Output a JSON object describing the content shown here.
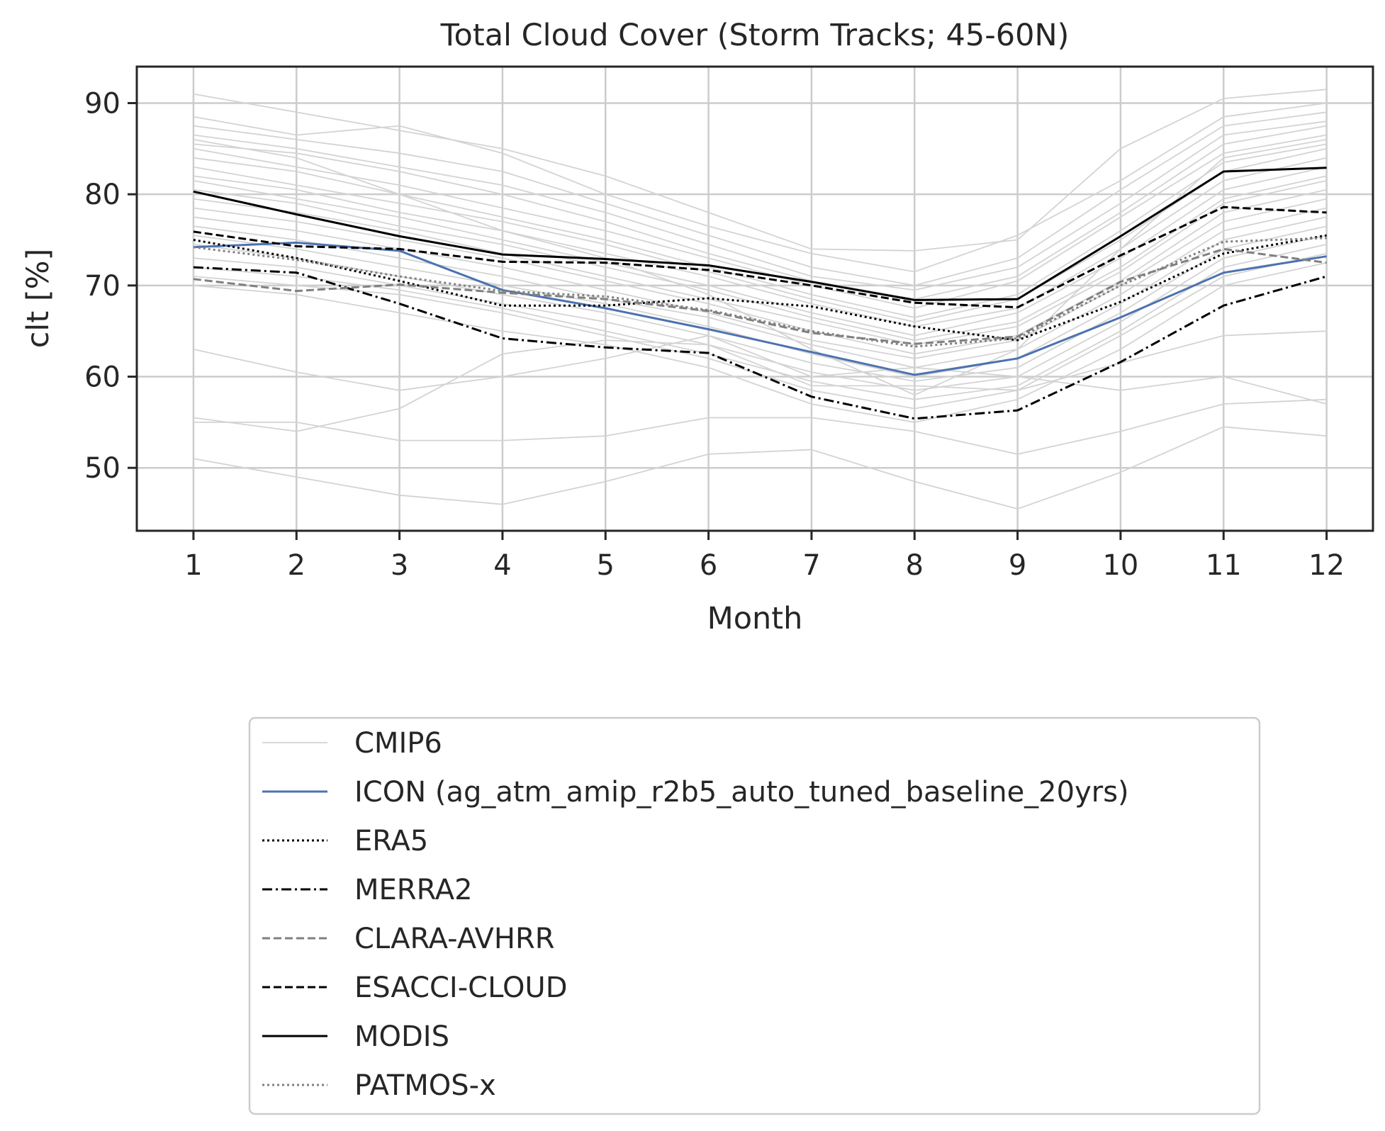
{
  "chart_data": {
    "type": "line",
    "title": "Total Cloud Cover (Storm Tracks; 45-60N)",
    "xlabel": "Month",
    "ylabel": "clt [%]",
    "x": [
      1,
      2,
      3,
      4,
      5,
      6,
      7,
      8,
      9,
      10,
      11,
      12
    ],
    "xticks": [
      1,
      2,
      3,
      4,
      5,
      6,
      7,
      8,
      9,
      10,
      11,
      12
    ],
    "yticks": [
      50,
      60,
      70,
      80,
      90
    ],
    "xlim": [
      0.45,
      12.45
    ],
    "ylim": [
      43.1,
      94.0
    ],
    "grid": true,
    "legend_position": "bottom-center (below plot)",
    "legend": [
      "CMIP6",
      "ICON (ag_atm_amip_r2b5_auto_tuned_baseline_20yrs)",
      "ERA5",
      "MERRA2",
      "CLARA-AVHRR",
      "ESACCI-CLOUD",
      "MODIS",
      "PATMOS-x"
    ],
    "cmip6_style": {
      "color": "#d3d3d3"
    },
    "cmip6_models": [
      [
        91.0,
        89.0,
        87.0,
        85.0,
        82.0,
        78.0,
        74.0,
        73.8,
        75.0,
        85.0,
        90.5,
        91.5
      ],
      [
        88.5,
        86.5,
        87.5,
        84.5,
        80.0,
        76.5,
        73.5,
        71.5,
        75.5,
        81.5,
        88.5,
        90.0
      ],
      [
        87.5,
        86.0,
        84.5,
        82.5,
        79.0,
        75.5,
        72.0,
        70.0,
        73.0,
        80.5,
        87.5,
        89.0
      ],
      [
        86.5,
        85.0,
        83.0,
        81.0,
        78.0,
        74.5,
        71.0,
        69.5,
        72.0,
        79.0,
        86.5,
        88.0
      ],
      [
        85.5,
        84.5,
        82.5,
        80.0,
        77.0,
        73.5,
        70.5,
        68.5,
        71.0,
        78.0,
        85.5,
        87.5
      ],
      [
        85.0,
        83.0,
        81.0,
        78.5,
        76.0,
        73.0,
        70.0,
        67.5,
        70.5,
        77.5,
        84.5,
        86.5
      ],
      [
        84.0,
        82.5,
        80.0,
        77.5,
        75.0,
        72.0,
        69.0,
        66.5,
        69.0,
        76.0,
        83.5,
        85.5
      ],
      [
        83.0,
        81.0,
        79.0,
        77.0,
        74.5,
        71.5,
        68.5,
        66.0,
        68.5,
        75.0,
        82.5,
        85.0
      ],
      [
        82.0,
        80.5,
        78.0,
        76.0,
        73.5,
        71.0,
        68.0,
        65.5,
        67.5,
        74.0,
        81.5,
        84.0
      ],
      [
        81.5,
        79.5,
        77.5,
        75.0,
        72.5,
        70.0,
        67.0,
        64.5,
        67.0,
        73.0,
        80.5,
        83.0
      ],
      [
        80.5,
        79.0,
        76.5,
        74.5,
        72.0,
        69.5,
        66.5,
        64.0,
        66.0,
        72.0,
        79.5,
        82.0
      ],
      [
        79.5,
        78.0,
        76.0,
        73.5,
        71.0,
        68.5,
        66.0,
        63.5,
        65.5,
        71.5,
        79.0,
        81.5
      ],
      [
        78.5,
        77.0,
        75.0,
        73.0,
        70.5,
        68.0,
        65.0,
        62.5,
        64.5,
        70.5,
        78.0,
        80.5
      ],
      [
        77.5,
        76.0,
        74.0,
        72.0,
        69.5,
        67.0,
        64.0,
        62.0,
        64.0,
        70.0,
        77.0,
        79.5
      ],
      [
        76.5,
        75.0,
        73.0,
        71.0,
        68.5,
        66.5,
        63.5,
        61.0,
        63.0,
        69.0,
        76.0,
        78.5
      ],
      [
        75.5,
        74.0,
        72.0,
        70.0,
        68.0,
        65.5,
        62.5,
        60.0,
        62.0,
        68.0,
        75.0,
        77.5
      ],
      [
        74.5,
        73.0,
        71.0,
        69.0,
        67.0,
        64.5,
        61.5,
        59.5,
        61.0,
        67.0,
        74.0,
        76.5
      ],
      [
        73.0,
        72.0,
        70.0,
        68.0,
        66.0,
        63.5,
        60.5,
        58.5,
        60.0,
        66.0,
        73.0,
        75.5
      ],
      [
        72.0,
        71.0,
        69.5,
        67.5,
        65.0,
        62.5,
        59.5,
        57.5,
        59.0,
        65.0,
        72.0,
        74.5
      ],
      [
        71.0,
        70.0,
        69.0,
        67.0,
        64.5,
        62.0,
        58.5,
        56.5,
        58.5,
        64.5,
        71.0,
        73.5
      ],
      [
        70.0,
        69.0,
        67.0,
        65.0,
        63.5,
        61.0,
        57.0,
        55.0,
        57.5,
        63.0,
        70.0,
        72.5
      ],
      [
        63.0,
        60.5,
        58.5,
        60.0,
        62.0,
        64.5,
        60.0,
        61.0,
        60.0,
        58.5,
        60.0,
        57.0
      ],
      [
        55.5,
        54.0,
        56.5,
        62.5,
        64.0,
        63.5,
        59.0,
        59.0,
        58.5,
        61.5,
        64.5,
        65.0
      ],
      [
        55.0,
        55.0,
        53.0,
        53.0,
        53.5,
        55.5,
        55.5,
        54.0,
        51.5,
        54.0,
        57.0,
        57.5
      ],
      [
        51.0,
        49.0,
        47.0,
        46.0,
        48.5,
        51.5,
        52.0,
        48.5,
        45.5,
        49.5,
        54.5,
        53.5
      ],
      [
        86.0,
        84.0,
        80.0,
        76.0,
        73.0,
        69.0,
        63.0,
        58.0,
        63.0,
        74.0,
        84.0,
        86.0
      ]
    ],
    "series": [
      {
        "name": "ICON (ag_atm_amip_r2b5_auto_tuned_baseline_20yrs)",
        "color": "#4c72b0",
        "dash": "solid",
        "values": [
          74.2,
          74.7,
          73.8,
          69.5,
          67.5,
          65.2,
          62.7,
          60.2,
          62.0,
          66.5,
          71.4,
          73.2
        ]
      },
      {
        "name": "ERA5",
        "color": "#000000",
        "dash": "dotted",
        "values": [
          75.0,
          73.0,
          70.5,
          67.8,
          67.8,
          68.6,
          67.7,
          65.5,
          64.0,
          68.2,
          73.5,
          75.5
        ]
      },
      {
        "name": "MERRA2",
        "color": "#000000",
        "dash": "dashdot",
        "values": [
          72.0,
          71.4,
          68.0,
          64.2,
          63.2,
          62.6,
          57.8,
          55.4,
          56.3,
          61.6,
          67.8,
          71.0
        ]
      },
      {
        "name": "CLARA-AVHRR",
        "color": "#808080",
        "dash": "dashed",
        "values": [
          70.7,
          69.4,
          70.1,
          69.2,
          68.5,
          67.2,
          64.8,
          63.6,
          64.4,
          70.4,
          74.0,
          72.5
        ]
      },
      {
        "name": "ESACCI-CLOUD",
        "color": "#000000",
        "dash": "dashed",
        "values": [
          75.9,
          74.3,
          74.0,
          72.6,
          72.5,
          71.7,
          70.0,
          68.1,
          67.6,
          73.3,
          78.6,
          78.0
        ]
      },
      {
        "name": "MODIS",
        "color": "#000000",
        "dash": "solid",
        "values": [
          80.3,
          77.8,
          75.4,
          73.4,
          72.9,
          72.2,
          70.4,
          68.4,
          68.5,
          75.4,
          82.5,
          82.9
        ]
      },
      {
        "name": "PATMOS-x",
        "color": "#808080",
        "dash": "dotted",
        "values": [
          74.2,
          72.8,
          71.0,
          69.4,
          68.8,
          67.3,
          65.0,
          63.3,
          64.2,
          70.0,
          74.8,
          75.2
        ]
      }
    ]
  }
}
